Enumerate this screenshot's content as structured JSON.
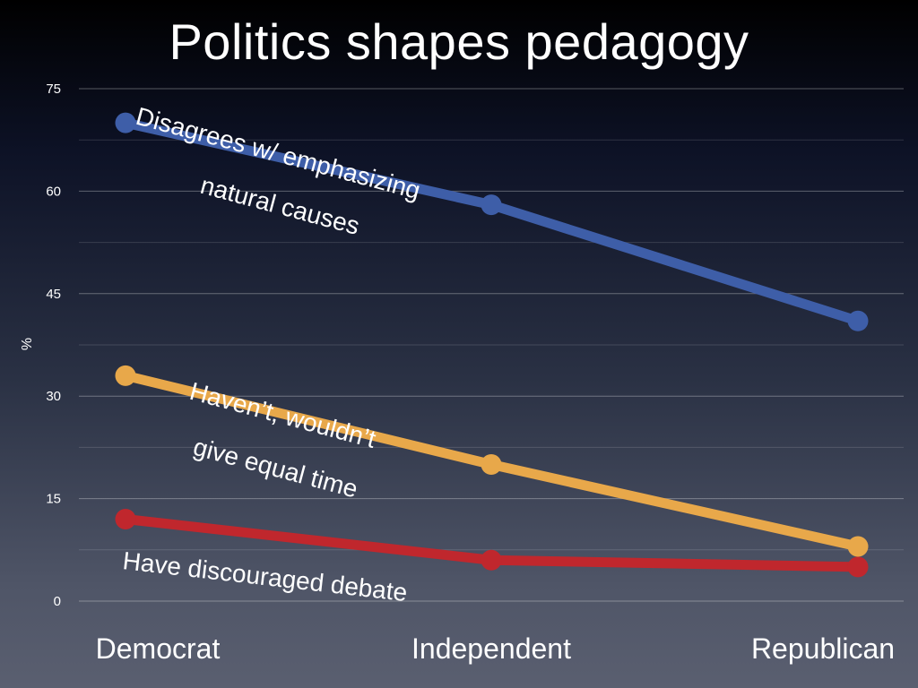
{
  "chart_data": {
    "type": "line",
    "title": "Politics shapes pedagogy",
    "xlabel": "",
    "ylabel": "%",
    "ylim": [
      0,
      75
    ],
    "yticks": [
      0,
      15,
      30,
      45,
      60,
      75
    ],
    "grid": true,
    "categories": [
      "Democrat",
      "Independent",
      "Republican"
    ],
    "series": [
      {
        "name": "Disagrees w/ emphasizing natural causes",
        "label_lines": [
          "Disagrees w/ emphasizing",
          "natural causes"
        ],
        "color": "#3e5ea8",
        "values": [
          70,
          58,
          41
        ]
      },
      {
        "name": "Haven’t, wouldn’t give equal time",
        "label_lines": [
          "Haven’t, wouldn’t",
          "give equal time"
        ],
        "color": "#e8a84a",
        "values": [
          33,
          20,
          8
        ]
      },
      {
        "name": "Have discouraged debate",
        "label_lines": [
          "Have discouraged debate"
        ],
        "color": "#c0272d",
        "values": [
          12,
          6,
          5
        ]
      }
    ]
  }
}
